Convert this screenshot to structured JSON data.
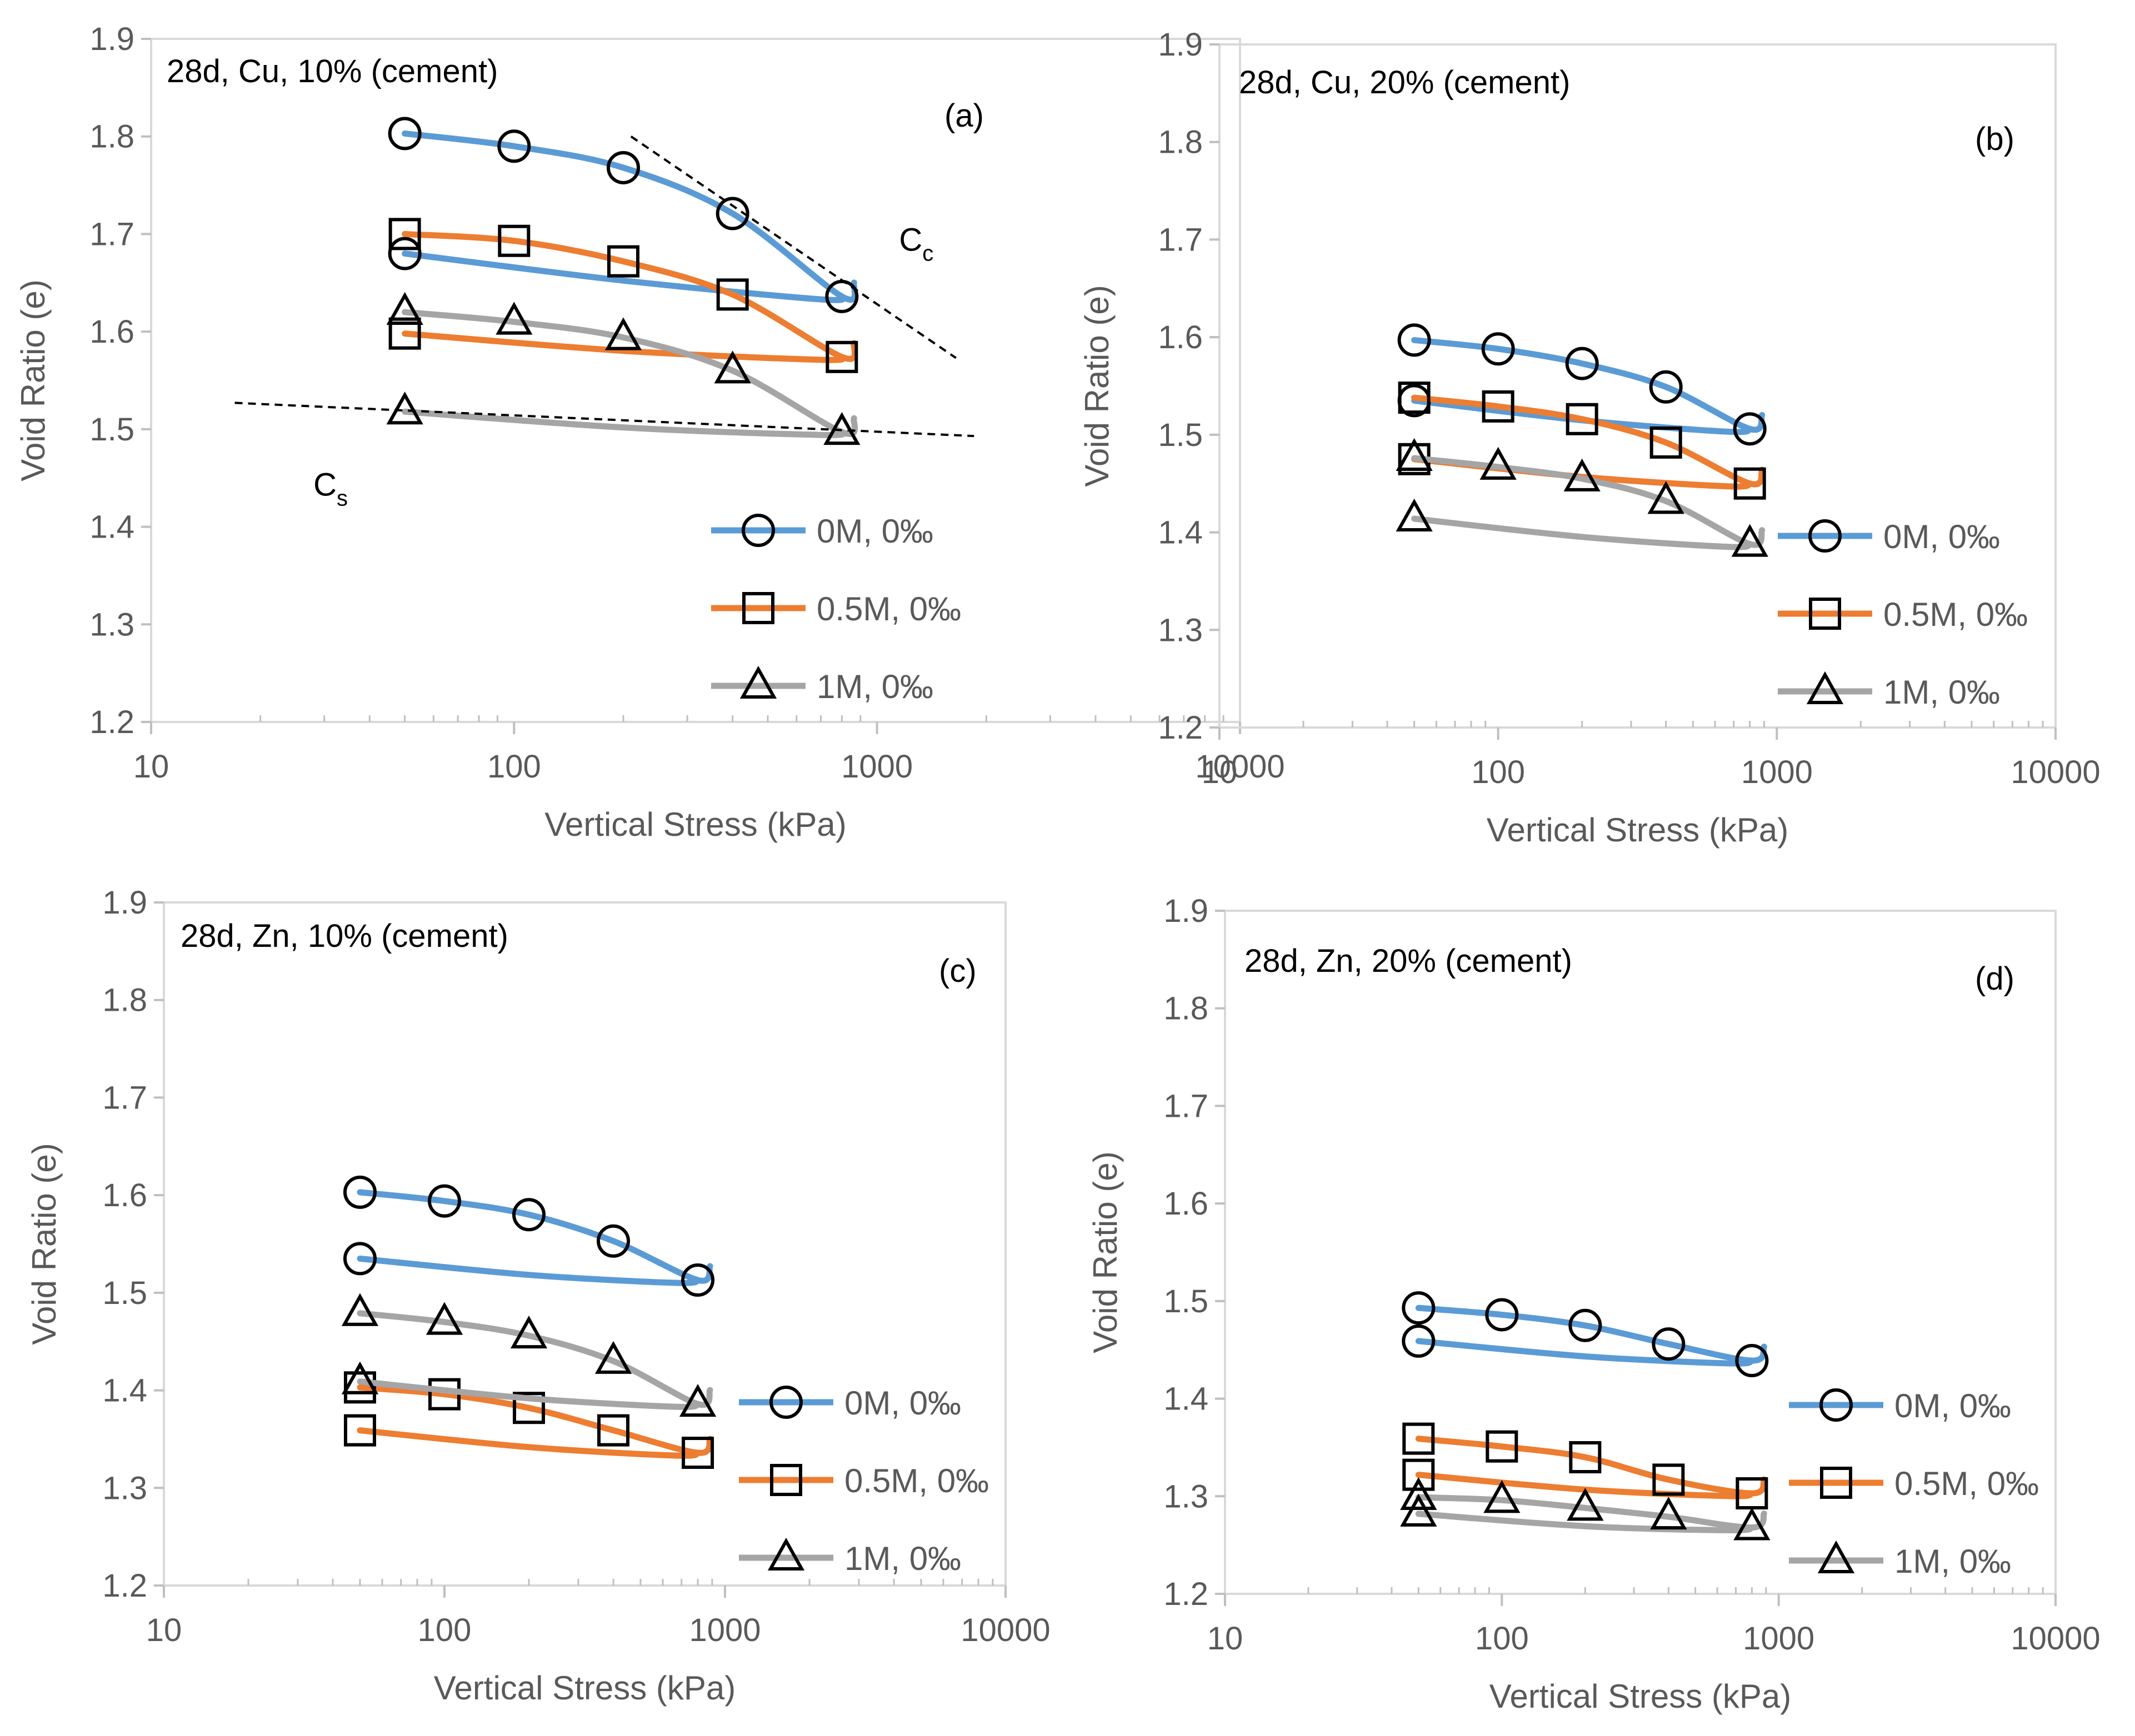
{
  "chart_data": [
    {
      "type": "line",
      "panel": "(a)",
      "title": "28d, Cu, 10% (cement)",
      "xlabel": "Vertical Stress (kPa)",
      "ylabel": "Void Ratio (e)",
      "xscale": "log",
      "xlim": [
        10,
        10000
      ],
      "ylim": [
        1.2,
        1.9
      ],
      "xticks": [
        "10",
        "100",
        "1000",
        "10000"
      ],
      "yticks": [
        "1.2",
        "1.3",
        "1.4",
        "1.5",
        "1.6",
        "1.7",
        "1.8",
        "1.9"
      ],
      "legend_position": "lower-right",
      "series": [
        {
          "name": "0M, 0‰",
          "color": "#5B9BD5",
          "marker": "circle",
          "loading": {
            "x": [
              50,
              100,
              200,
              400,
              800
            ],
            "y": [
              1.803,
              1.79,
              1.768,
              1.721,
              1.636
            ]
          },
          "unloading": {
            "x": [
              50,
              800
            ],
            "y": [
              1.68,
              1.636
            ]
          }
        },
        {
          "name": "0.5M, 0‰",
          "color": "#ED7D31",
          "marker": "square",
          "loading": {
            "x": [
              50,
              100,
              200,
              400,
              800
            ],
            "y": [
              1.7,
              1.693,
              1.672,
              1.638,
              1.574
            ]
          },
          "unloading": {
            "x": [
              50,
              800
            ],
            "y": [
              1.598,
              1.574
            ]
          }
        },
        {
          "name": "1M, 0‰",
          "color": "#A5A5A5",
          "marker": "triangle",
          "loading": {
            "x": [
              50,
              100,
              200,
              400,
              800
            ],
            "y": [
              1.62,
              1.61,
              1.594,
              1.56,
              1.497
            ]
          },
          "unloading": {
            "x": [
              50,
              800
            ],
            "y": [
              1.518,
              1.497
            ]
          }
        }
      ],
      "annotations": [
        {
          "text": "(a)",
          "position": "top-right"
        },
        {
          "text": "C",
          "subscript": "c",
          "label": "compression index"
        },
        {
          "text": "C",
          "subscript": "s",
          "label": "swelling index"
        }
      ]
    },
    {
      "type": "line",
      "panel": "(b)",
      "title": "28d, Cu, 20% (cement)",
      "xlabel": "Vertical Stress (kPa)",
      "ylabel": "Void Ratio (e)",
      "xscale": "log",
      "xlim": [
        10,
        10000
      ],
      "ylim": [
        1.2,
        1.9
      ],
      "xticks": [
        "10",
        "100",
        "1000",
        "10000"
      ],
      "yticks": [
        "1.2",
        "1.3",
        "1.4",
        "1.5",
        "1.6",
        "1.7",
        "1.8",
        "1.9"
      ],
      "legend_position": "lower-right",
      "series": [
        {
          "name": "0M, 0‰",
          "color": "#5B9BD5",
          "marker": "circle",
          "loading": {
            "x": [
              50,
              100,
              200,
              400,
              800
            ],
            "y": [
              1.597,
              1.588,
              1.573,
              1.549,
              1.506
            ]
          },
          "unloading": {
            "x": [
              50,
              800
            ],
            "y": [
              1.535,
              1.506
            ]
          }
        },
        {
          "name": "0.5M, 0‰",
          "color": "#ED7D31",
          "marker": "square",
          "loading": {
            "x": [
              50,
              100,
              200,
              400,
              800
            ],
            "y": [
              1.538,
              1.529,
              1.516,
              1.492,
              1.45
            ]
          },
          "unloading": {
            "x": [
              50,
              800
            ],
            "y": [
              1.475,
              1.45
            ]
          }
        },
        {
          "name": "1M, 0‰",
          "color": "#A5A5A5",
          "marker": "triangle",
          "loading": {
            "x": [
              50,
              100,
              200,
              400,
              800
            ],
            "y": [
              1.476,
              1.467,
              1.455,
              1.432,
              1.388
            ]
          },
          "unloading": {
            "x": [
              50,
              800
            ],
            "y": [
              1.414,
              1.388
            ]
          }
        }
      ],
      "annotations": [
        {
          "text": "(b)",
          "position": "top-right"
        }
      ]
    },
    {
      "type": "line",
      "panel": "(c)",
      "title": "28d, Zn, 10% (cement)",
      "xlabel": "Vertical Stress (kPa)",
      "ylabel": "Void Ratio (e)",
      "xscale": "log",
      "xlim": [
        10,
        10000
      ],
      "ylim": [
        1.2,
        1.9
      ],
      "xticks": [
        "10",
        "100",
        "1000",
        "10000"
      ],
      "yticks": [
        "1.2",
        "1.3",
        "1.4",
        "1.5",
        "1.6",
        "1.7",
        "1.8",
        "1.9"
      ],
      "legend_position": "lower-right",
      "series": [
        {
          "name": "0M, 0‰",
          "color": "#5B9BD5",
          "marker": "circle",
          "loading": {
            "x": [
              50,
              100,
              200,
              400,
              800
            ],
            "y": [
              1.603,
              1.594,
              1.58,
              1.553,
              1.513
            ]
          },
          "unloading": {
            "x": [
              50,
              800
            ],
            "y": [
              1.535,
              1.513
            ]
          }
        },
        {
          "name": "0.5M, 0‰",
          "color": "#ED7D31",
          "marker": "square",
          "loading": {
            "x": [
              50,
              100,
              200,
              400,
              800
            ],
            "y": [
              1.403,
              1.396,
              1.382,
              1.359,
              1.336
            ]
          },
          "unloading": {
            "x": [
              50,
              800
            ],
            "y": [
              1.359,
              1.336
            ]
          }
        },
        {
          "name": "1M, 0‰",
          "color": "#A5A5A5",
          "marker": "triangle",
          "loading": {
            "x": [
              50,
              100,
              200,
              400,
              800
            ],
            "y": [
              1.479,
              1.47,
              1.456,
              1.43,
              1.386
            ]
          },
          "unloading": {
            "x": [
              50,
              800
            ],
            "y": [
              1.409,
              1.386
            ]
          }
        }
      ],
      "annotations": [
        {
          "text": "(c)",
          "position": "top-right"
        }
      ]
    },
    {
      "type": "line",
      "panel": "(d)",
      "title": "28d, Zn, 20% (cement)",
      "xlabel": "Vertical Stress (kPa)",
      "ylabel": "Void Ratio (e)",
      "xscale": "log",
      "xlim": [
        10,
        10000
      ],
      "ylim": [
        1.2,
        1.9
      ],
      "xticks": [
        "10",
        "100",
        "1000",
        "10000"
      ],
      "yticks": [
        "1.2",
        "1.3",
        "1.4",
        "1.5",
        "1.6",
        "1.7",
        "1.8",
        "1.9"
      ],
      "legend_position": "lower-right",
      "series": [
        {
          "name": "0M, 0‰",
          "color": "#5B9BD5",
          "marker": "circle",
          "loading": {
            "x": [
              50,
              100,
              200,
              400,
              800
            ],
            "y": [
              1.493,
              1.486,
              1.475,
              1.456,
              1.439
            ]
          },
          "unloading": {
            "x": [
              50,
              800
            ],
            "y": [
              1.459,
              1.439
            ]
          }
        },
        {
          "name": "0.5M, 0‰",
          "color": "#ED7D31",
          "marker": "square",
          "loading": {
            "x": [
              50,
              100,
              200,
              400,
              800
            ],
            "y": [
              1.359,
              1.351,
              1.34,
              1.317,
              1.303
            ]
          },
          "unloading": {
            "x": [
              50,
              800
            ],
            "y": [
              1.322,
              1.303
            ]
          }
        },
        {
          "name": "1M, 0‰",
          "color": "#A5A5A5",
          "marker": "triangle",
          "loading": {
            "x": [
              50,
              100,
              200,
              400,
              800
            ],
            "y": [
              1.299,
              1.296,
              1.288,
              1.279,
              1.268
            ]
          },
          "unloading": {
            "x": [
              50,
              800
            ],
            "y": [
              1.282,
              1.268
            ]
          }
        }
      ],
      "annotations": [
        {
          "text": "(d)",
          "position": "top-right"
        }
      ]
    }
  ]
}
